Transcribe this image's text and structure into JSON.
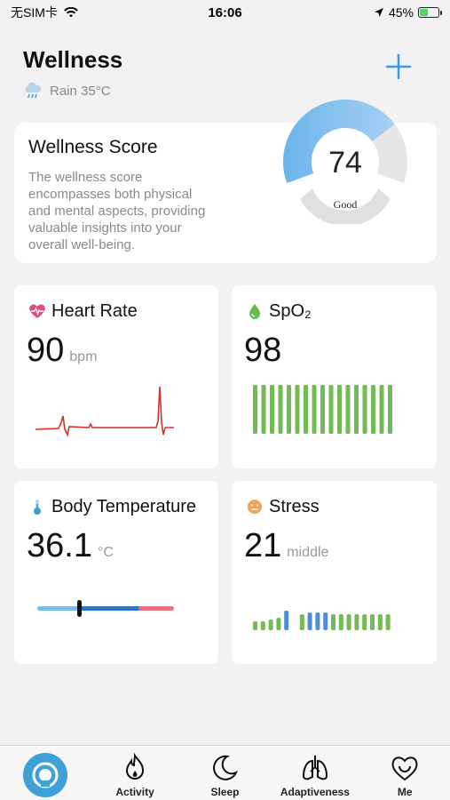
{
  "status_bar": {
    "carrier": "无SIM卡",
    "time": "16:06",
    "battery": "45%",
    "battery_level_percent": 45
  },
  "header": {
    "title": "Wellness",
    "weather": "Rain 35°C",
    "weather_icon": "rain-cloud-icon",
    "add_icon": "plus-icon"
  },
  "score": {
    "title": "Wellness Score",
    "description_lines": [
      "The wellness score",
      "encompasses both physical",
      "and mental aspects, providing",
      "valuable insights into your",
      "overall well-being."
    ],
    "value": "74",
    "rating": "Good",
    "gauge_fill_fraction": 0.74
  },
  "heart_rate": {
    "title": "Heart Rate",
    "value": "90",
    "unit": "bpm",
    "icon": "heart-pulse-icon",
    "color": "#d8312b"
  },
  "spo2": {
    "title": "SpO₂",
    "value": "98",
    "icon": "drop-icon",
    "color": "#72bb53",
    "bars": 17
  },
  "body_temperature": {
    "title": "Body Temperature",
    "value": "36.1",
    "unit": "°C",
    "icon": "thermometer-icon"
  },
  "stress": {
    "title": "Stress",
    "value": "21",
    "unit": "middle",
    "icon": "face-icon",
    "colors": {
      "low": "#72bb53",
      "mid": "#4a90d9"
    }
  },
  "tabs": [
    {
      "label": "",
      "icon": "home-icon"
    },
    {
      "label": "Activity",
      "icon": "flame-icon"
    },
    {
      "label": "Sleep",
      "icon": "moon-icon"
    },
    {
      "label": "Adaptiveness",
      "icon": "lungs-icon"
    },
    {
      "label": "Me",
      "icon": "heart-face-icon"
    }
  ]
}
